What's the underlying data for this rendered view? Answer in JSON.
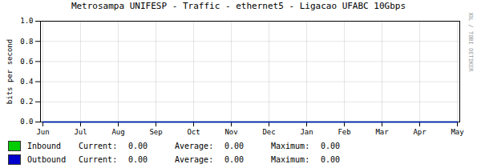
{
  "chart_data": {
    "type": "line",
    "title": "Metrosampa UNIFESP - Traffic - ethernet5 - Ligacao UFABC 10Gbps",
    "ylabel": "bits per second",
    "categories": [
      "Jun",
      "Jul",
      "Aug",
      "Sep",
      "Oct",
      "Nov",
      "Dec",
      "Jan",
      "Feb",
      "Mar",
      "Apr",
      "May"
    ],
    "series": [
      {
        "name": "Inbound",
        "color": "#00cc00",
        "values": [
          0,
          0,
          0,
          0,
          0,
          0,
          0,
          0,
          0,
          0,
          0,
          0
        ],
        "stats": [
          {
            "value": 0,
            "label": "0.00"
          },
          {
            "value": 0,
            "label": "0.00"
          },
          {
            "value": 0,
            "label": "0.00"
          }
        ]
      },
      {
        "name": "Outbound",
        "color": "#0000cc",
        "values": [
          0,
          0,
          0,
          0,
          0,
          0,
          0,
          0,
          0,
          0,
          0,
          0
        ],
        "stats": [
          {
            "value": 0,
            "label": "0.00"
          },
          {
            "value": 0,
            "label": "0.00"
          },
          {
            "value": 0,
            "label": "0.00"
          }
        ]
      }
    ],
    "legend_columns": [
      "Current:",
      "Average:",
      "Maximum:"
    ],
    "annotations": [
      {
        "text": "RRDTOOL / TOBI OETIKER"
      }
    ],
    "ylim": [
      0.0,
      1.0
    ],
    "yticks": [
      {
        "value": 0,
        "label": "0.0"
      },
      0.2,
      0.4,
      0.6,
      0.8,
      {
        "value": 1,
        "label": "1.0"
      }
    ],
    "grid": true
  }
}
